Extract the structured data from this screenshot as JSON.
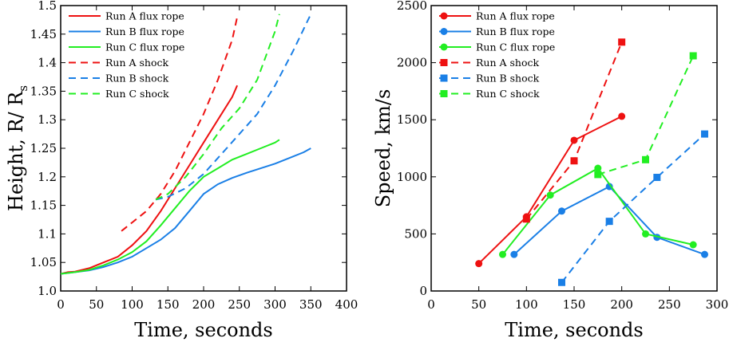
{
  "colors": {
    "run_a": "#ee1111",
    "run_b": "#1a7fe6",
    "run_c": "#22ee22"
  },
  "chart_data": [
    {
      "type": "line",
      "xlabel": "Time, seconds",
      "ylabel": "Height, R/ R",
      "ylabel_sub": "s",
      "xlim": [
        0,
        400
      ],
      "ylim": [
        1.0,
        1.5
      ],
      "xticks": [
        0,
        50,
        100,
        150,
        200,
        250,
        300,
        350,
        400
      ],
      "yticks": [
        1.0,
        1.05,
        1.1,
        1.15,
        1.2,
        1.25,
        1.3,
        1.35,
        1.4,
        1.45,
        1.5
      ],
      "ytick_labels": [
        "1.0",
        "1.05",
        "1.1",
        "1.15",
        "1.2",
        "1.25",
        "1.3",
        "1.35",
        "1.4",
        "1.45",
        "1.5"
      ],
      "grid": false,
      "legend_position": "top-left",
      "series": [
        {
          "name": "Run A flux rope",
          "color": "#ee1111",
          "dash": "solid",
          "x": [
            0,
            10,
            20,
            40,
            60,
            80,
            100,
            120,
            140,
            160,
            180,
            200,
            220,
            240,
            247
          ],
          "y": [
            1.03,
            1.033,
            1.034,
            1.04,
            1.05,
            1.06,
            1.08,
            1.105,
            1.14,
            1.18,
            1.22,
            1.26,
            1.3,
            1.34,
            1.36
          ]
        },
        {
          "name": "Run B flux rope",
          "color": "#1a7fe6",
          "dash": "solid",
          "x": [
            0,
            20,
            40,
            60,
            80,
            100,
            120,
            140,
            160,
            180,
            200,
            220,
            240,
            260,
            280,
            300,
            320,
            340,
            350
          ],
          "y": [
            1.03,
            1.033,
            1.036,
            1.042,
            1.05,
            1.06,
            1.075,
            1.09,
            1.11,
            1.14,
            1.17,
            1.187,
            1.198,
            1.207,
            1.215,
            1.223,
            1.233,
            1.243,
            1.25
          ]
        },
        {
          "name": "Run C flux rope",
          "color": "#22ee22",
          "dash": "solid",
          "x": [
            0,
            20,
            40,
            60,
            80,
            100,
            120,
            140,
            160,
            180,
            200,
            220,
            240,
            260,
            280,
            300,
            306
          ],
          "y": [
            1.03,
            1.033,
            1.037,
            1.045,
            1.055,
            1.068,
            1.087,
            1.115,
            1.145,
            1.175,
            1.2,
            1.215,
            1.23,
            1.24,
            1.25,
            1.26,
            1.265
          ]
        },
        {
          "name": "Run A shock",
          "color": "#ee1111",
          "dash": "dashed",
          "x": [
            85,
            100,
            120,
            140,
            160,
            180,
            200,
            220,
            240,
            247
          ],
          "y": [
            1.105,
            1.12,
            1.14,
            1.17,
            1.21,
            1.26,
            1.31,
            1.37,
            1.44,
            1.48
          ]
        },
        {
          "name": "Run B shock",
          "color": "#1a7fe6",
          "dash": "dashed",
          "x": [
            133,
            150,
            175,
            200,
            225,
            250,
            275,
            300,
            325,
            350
          ],
          "y": [
            1.16,
            1.165,
            1.18,
            1.205,
            1.24,
            1.275,
            1.31,
            1.36,
            1.42,
            1.485
          ]
        },
        {
          "name": "Run C shock",
          "color": "#22ee22",
          "dash": "dashed",
          "x": [
            133,
            150,
            175,
            200,
            225,
            250,
            275,
            300,
            306
          ],
          "y": [
            1.16,
            1.17,
            1.2,
            1.24,
            1.285,
            1.32,
            1.37,
            1.455,
            1.485
          ]
        }
      ]
    },
    {
      "type": "line",
      "xlabel": "Time, seconds",
      "ylabel": "Speed, km/s",
      "xlim": [
        0,
        300
      ],
      "ylim": [
        0,
        2500
      ],
      "xticks": [
        0,
        50,
        100,
        150,
        200,
        250,
        300
      ],
      "yticks": [
        0,
        500,
        1000,
        1500,
        2000,
        2500
      ],
      "grid": false,
      "legend_position": "top-left",
      "series": [
        {
          "name": "Run A flux rope",
          "color": "#ee1111",
          "dash": "solid",
          "marker": "circle",
          "x": [
            50,
            100,
            150,
            200
          ],
          "y": [
            240,
            650,
            1320,
            1530
          ]
        },
        {
          "name": "Run B flux rope",
          "color": "#1a7fe6",
          "dash": "solid",
          "marker": "circle",
          "x": [
            87,
            137,
            187,
            237,
            287
          ],
          "y": [
            320,
            700,
            915,
            470,
            320
          ]
        },
        {
          "name": "Run C flux rope",
          "color": "#22ee22",
          "dash": "solid",
          "marker": "circle",
          "x": [
            75,
            125,
            175,
            225,
            275
          ],
          "y": [
            320,
            840,
            1075,
            500,
            405
          ]
        },
        {
          "name": "Run A shock",
          "color": "#ee1111",
          "dash": "dashed",
          "marker": "square",
          "x": [
            100,
            150,
            200
          ],
          "y": [
            630,
            1140,
            2180
          ]
        },
        {
          "name": "Run B shock",
          "color": "#1a7fe6",
          "dash": "dashed",
          "marker": "square",
          "x": [
            137,
            187,
            237,
            287
          ],
          "y": [
            75,
            610,
            995,
            1375
          ]
        },
        {
          "name": "Run C shock",
          "color": "#22ee22",
          "dash": "dashed",
          "marker": "square",
          "x": [
            175,
            225,
            275
          ],
          "y": [
            1020,
            1150,
            2060
          ]
        }
      ]
    }
  ]
}
